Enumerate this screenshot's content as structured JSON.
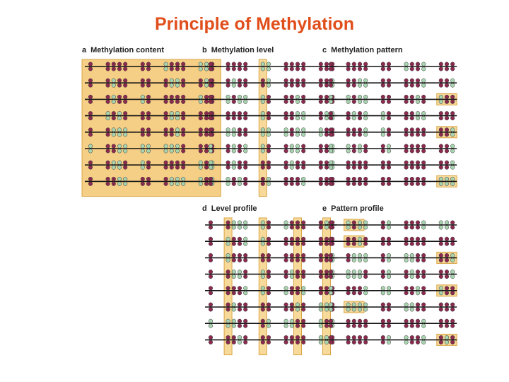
{
  "title": "Principle of Methylation",
  "panels": [
    {
      "letter": "a",
      "label": "Methylation content"
    },
    {
      "letter": "b",
      "label": "Methylation level"
    },
    {
      "letter": "c",
      "label": "Methylation pattern"
    },
    {
      "letter": "d",
      "label": "Level profile"
    },
    {
      "letter": "e",
      "label": "Pattern profile"
    }
  ],
  "colors": {
    "title": "#e04e1b",
    "methylated": "#8b2a4e",
    "unmethylated": "#a9d4b0",
    "highlight_fill": "#f7d99a",
    "highlight_stroke": "#d9a545",
    "panel_a_fill": "#f6cf86",
    "line": "#111111"
  }
}
